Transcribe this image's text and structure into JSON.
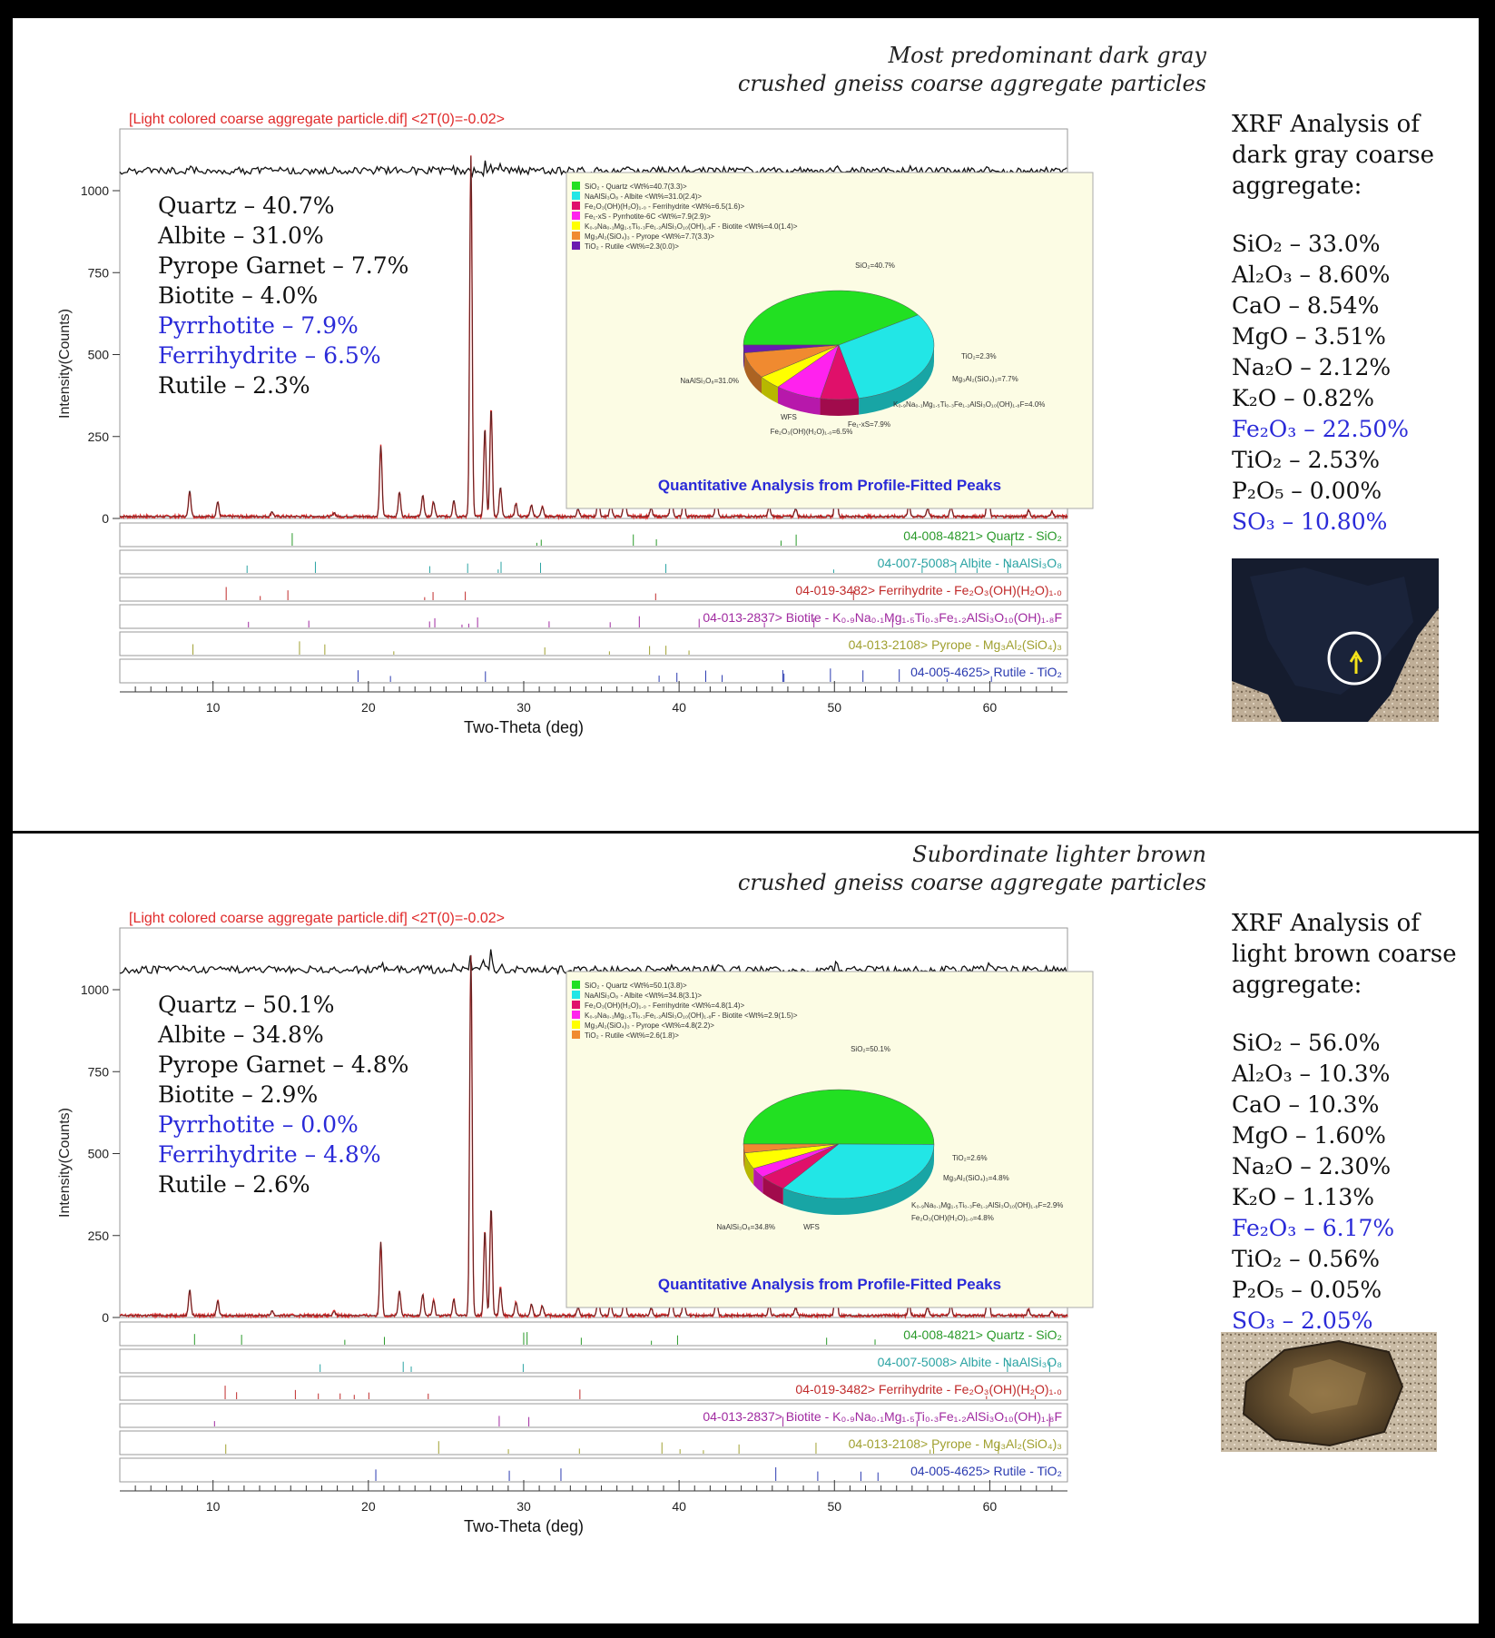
{
  "panels": [
    {
      "subtitle_line1": "Most predominant dark gray",
      "subtitle_line2": "crushed gneiss coarse aggregate particles",
      "chart_header": "[Light colored coarse aggregate particle.dif] <2T(0)=-0.02>",
      "minerals": [
        {
          "text": "Quartz – 40.7%",
          "highlight": false
        },
        {
          "text": "Albite – 31.0%",
          "highlight": false
        },
        {
          "text": "Pyrope Garnet – 7.7%",
          "highlight": false
        },
        {
          "text": "Biotite – 4.0%",
          "highlight": false
        },
        {
          "text": "Pyrrhotite – 7.9%",
          "highlight": true
        },
        {
          "text": "Ferrihydrite – 6.5%",
          "highlight": true
        },
        {
          "text": "Rutile – 2.3%",
          "highlight": false
        }
      ],
      "inset": {
        "title": "Quantitative Analysis from Profile-Fitted Peaks",
        "legend": [
          {
            "label": "SiO₂ - Quartz <Wt%=40.7(3.3)>",
            "color": "#22e022"
          },
          {
            "label": "NaAlSi₃O₈ - Albite <Wt%=31.0(2.4)>",
            "color": "#22e6e6"
          },
          {
            "label": "Fe₂O₃(OH)(H₂O)₁.₀ - Ferrihydrite <Wt%=6.5(1.6)>",
            "color": "#e0106a"
          },
          {
            "label": "Fe₁-xS - Pyrrhotite-6C <Wt%=7.9(2.9)>",
            "color": "#ff22ee"
          },
          {
            "label": "K₀.₉Na₀.₁Mg₁.₅Ti₀.₃Fe₁.₂AlSi₃O₁₀(OH)₁.₈F - Biotite <Wt%=4.0(1.4)>",
            "color": "#ffff00"
          },
          {
            "label": "Mg₃Al₂(SiO₄)₃ - Pyrope <Wt%=7.7(3.3)>",
            "color": "#f08a30"
          },
          {
            "label": "TiO₂ - Rutile <Wt%=2.3(0.0)>",
            "color": "#6a1ab0"
          }
        ],
        "slice_labels": [
          "SiO₂=40.7%",
          "TiO₂=2.3%",
          "Mg₃Al₂(SiO₄)₃=7.7%",
          "K₀.₉Na₀.₁Mg₁.₅Ti₀.₃Fe₁.₂AlSi₃O₁₀(OH)₁.₈F=4.0%",
          "Fe₁-xS=7.9%",
          "Fe₂O₃(OH)(H₂O)₁.₀=6.5%",
          "WFS",
          "NaAlSi₃O₈=31.0%"
        ]
      },
      "phases": [
        {
          "label": "04-008-4821> Quartz - SiO₂",
          "color": "#2a9a2a"
        },
        {
          "label": "04-007-5008> Albite - NaAlSi₃O₈",
          "color": "#2aa3a3"
        },
        {
          "label": "04-019-3482> Ferrihydrite - Fe₂O₃(OH)(H₂O)₁.₀",
          "color": "#c02a2a"
        },
        {
          "label": "04-013-2837> Biotite - K₀.₉Na₀.₁Mg₁.₅Ti₀.₃Fe₁.₂AlSi₃O₁₀(OH)₁.₈F",
          "color": "#a02aa0"
        },
        {
          "label": "04-013-2108> Pyrope - Mg₃Al₂(SiO₄)₃",
          "color": "#a0a030"
        },
        {
          "label": "04-005-4625> Rutile - TiO₂",
          "color": "#2a3ab0"
        }
      ],
      "xrf_title": "XRF Analysis of dark gray coarse aggregate:",
      "xrf": [
        {
          "text": "SiO₂ – 33.0%",
          "highlight": false
        },
        {
          "text": "Al₂O₃ – 8.60%",
          "highlight": false
        },
        {
          "text": "CaO – 8.54%",
          "highlight": false
        },
        {
          "text": "MgO – 3.51%",
          "highlight": false
        },
        {
          "text": "Na₂O – 2.12%",
          "highlight": false
        },
        {
          "text": "K₂O – 0.82%",
          "highlight": false
        },
        {
          "text": "Fe₂O₃ – 22.50%",
          "highlight": true
        },
        {
          "text": "TiO₂ – 2.53%",
          "highlight": false
        },
        {
          "text": "P₂O₅ – 0.00%",
          "highlight": false
        },
        {
          "text": "SO₃ – 10.80%",
          "highlight": true
        }
      ]
    },
    {
      "subtitle_line1": "Subordinate lighter brown",
      "subtitle_line2": "crushed gneiss coarse aggregate particles",
      "chart_header": "[Light colored coarse aggregate particle.dif] <2T(0)=-0.02>",
      "minerals": [
        {
          "text": "Quartz – 50.1%",
          "highlight": false
        },
        {
          "text": "Albite – 34.8%",
          "highlight": false
        },
        {
          "text": "Pyrope Garnet – 4.8%",
          "highlight": false
        },
        {
          "text": "Biotite – 2.9%",
          "highlight": false
        },
        {
          "text": "Pyrrhotite – 0.0%",
          "highlight": true
        },
        {
          "text": "Ferrihydrite – 4.8%",
          "highlight": true
        },
        {
          "text": "Rutile – 2.6%",
          "highlight": false
        }
      ],
      "inset": {
        "title": "Quantitative Analysis from Profile-Fitted Peaks",
        "legend": [
          {
            "label": "SiO₂ - Quartz <Wt%=50.1(3.8)>",
            "color": "#22e022"
          },
          {
            "label": "NaAlSi₃O₈ - Albite <Wt%=34.8(3.1)>",
            "color": "#22e6e6"
          },
          {
            "label": "Fe₂O₃(OH)(H₂O)₁.₀ - Ferrihydrite <Wt%=4.8(1.4)>",
            "color": "#e0106a"
          },
          {
            "label": "K₀.₉Na₀.₁Mg₁.₅Ti₀.₃Fe₁.₂AlSi₃O₁₀(OH)₁.₈F - Biotite <Wt%=2.9(1.5)>",
            "color": "#ff22ee"
          },
          {
            "label": "Mg₃Al₂(SiO₄)₃ - Pyrope <Wt%=4.8(2.2)>",
            "color": "#ffff00"
          },
          {
            "label": "TiO₂ - Rutile <Wt%=2.6(1.8)>",
            "color": "#f08a30"
          }
        ],
        "slice_labels": [
          "SiO₂=50.1%",
          "TiO₂=2.6%",
          "Mg₃Al₂(SiO₄)₃=4.8%",
          "K₀.₉Na₀.₁Mg₁.₅Ti₀.₃Fe₁.₂AlSi₃O₁₀(OH)₁.₈F=2.9%",
          "Fe₂O₃(OH)(H₂O)₁.₀=4.8%",
          "WFS",
          "NaAlSi₃O₈=34.8%"
        ]
      },
      "phases": [
        {
          "label": "04-008-4821> Quartz - SiO₂",
          "color": "#2a9a2a"
        },
        {
          "label": "04-007-5008> Albite - NaAlSi₃O₈",
          "color": "#2aa3a3"
        },
        {
          "label": "04-019-3482> Ferrihydrite - Fe₂O₃(OH)(H₂O)₁.₀",
          "color": "#c02a2a"
        },
        {
          "label": "04-013-2837> Biotite - K₀.₉Na₀.₁Mg₁.₅Ti₀.₃Fe₁.₂AlSi₃O₁₀(OH)₁.₈F",
          "color": "#a02aa0"
        },
        {
          "label": "04-013-2108> Pyrope - Mg₃Al₂(SiO₄)₃",
          "color": "#a0a030"
        },
        {
          "label": "04-005-4625> Rutile - TiO₂",
          "color": "#2a3ab0"
        }
      ],
      "xrf_title": "XRF Analysis of light brown coarse aggregate:",
      "xrf": [
        {
          "text": "SiO₂ – 56.0%",
          "highlight": false
        },
        {
          "text": "Al₂O₃ – 10.3%",
          "highlight": false
        },
        {
          "text": "CaO – 10.3%",
          "highlight": false
        },
        {
          "text": "MgO – 1.60%",
          "highlight": false
        },
        {
          "text": "Na₂O – 2.30%",
          "highlight": false
        },
        {
          "text": "K₂O – 1.13%",
          "highlight": false
        },
        {
          "text": "Fe₂O₃ – 6.17%",
          "highlight": true
        },
        {
          "text": "TiO₂ – 0.56%",
          "highlight": false
        },
        {
          "text": "P₂O₅ – 0.05%",
          "highlight": false
        },
        {
          "text": "SO₃ – 2.05%",
          "highlight": true
        }
      ]
    }
  ],
  "chart_data": [
    {
      "type": "line",
      "xlabel": "Two-Theta (deg)",
      "ylabel": "Intensity(Counts)",
      "xlim": [
        4,
        65
      ],
      "ylim": [
        0,
        1000
      ],
      "xticks": [
        10,
        20,
        30,
        40,
        50,
        60
      ],
      "yticks": [
        0,
        250,
        500,
        750,
        1000
      ],
      "peaks": [
        [
          8.5,
          80
        ],
        [
          10.3,
          45
        ],
        [
          13.8,
          15
        ],
        [
          17.8,
          12
        ],
        [
          20.8,
          215
        ],
        [
          22.0,
          75
        ],
        [
          23.5,
          65
        ],
        [
          24.2,
          45
        ],
        [
          25.5,
          50
        ],
        [
          26.6,
          1100
        ],
        [
          27.5,
          270
        ],
        [
          27.9,
          330
        ],
        [
          28.5,
          90
        ],
        [
          29.5,
          40
        ],
        [
          30.5,
          35
        ],
        [
          31.2,
          30
        ],
        [
          33.5,
          25
        ],
        [
          34.8,
          60
        ],
        [
          35.6,
          40
        ],
        [
          36.5,
          75
        ],
        [
          38.2,
          25
        ],
        [
          39.5,
          70
        ],
        [
          40.3,
          55
        ],
        [
          42.4,
          60
        ],
        [
          45.8,
          30
        ],
        [
          47.5,
          25
        ],
        [
          50.1,
          150
        ],
        [
          54.8,
          35
        ],
        [
          56.0,
          25
        ],
        [
          57.5,
          30
        ],
        [
          59.9,
          120
        ],
        [
          62.5,
          20
        ],
        [
          64.0,
          15
        ]
      ],
      "pie": {
        "categories": [
          "SiO₂",
          "NaAlSi₃O₈",
          "Fe₂O₃(OH)(H₂O)₁.₀",
          "Fe₁-xS",
          "K₀.₉Na₀.₁Mg₁.₅Ti₀.₃Fe₁.₂AlSi₃O₁₀(OH)₁.₈F",
          "Mg₃Al₂(SiO₄)₃",
          "TiO₂"
        ],
        "values": [
          40.7,
          31.0,
          6.5,
          7.9,
          4.0,
          7.7,
          2.3
        ]
      }
    },
    {
      "type": "line",
      "xlabel": "Two-Theta (deg)",
      "ylabel": "Intensity(Counts)",
      "xlim": [
        4,
        65
      ],
      "ylim": [
        0,
        1000
      ],
      "xticks": [
        10,
        20,
        30,
        40,
        50,
        60
      ],
      "yticks": [
        0,
        250,
        500,
        750,
        1000
      ],
      "peaks": [
        [
          8.5,
          80
        ],
        [
          10.3,
          45
        ],
        [
          13.8,
          15
        ],
        [
          17.8,
          12
        ],
        [
          20.8,
          225
        ],
        [
          22.0,
          75
        ],
        [
          23.5,
          65
        ],
        [
          24.2,
          45
        ],
        [
          25.5,
          50
        ],
        [
          26.6,
          1100
        ],
        [
          27.5,
          260
        ],
        [
          27.9,
          330
        ],
        [
          28.5,
          85
        ],
        [
          29.5,
          40
        ],
        [
          30.5,
          35
        ],
        [
          31.2,
          30
        ],
        [
          33.5,
          25
        ],
        [
          34.8,
          55
        ],
        [
          35.6,
          40
        ],
        [
          36.5,
          80
        ],
        [
          38.2,
          25
        ],
        [
          39.5,
          70
        ],
        [
          40.3,
          55
        ],
        [
          42.4,
          55
        ],
        [
          45.8,
          30
        ],
        [
          47.5,
          25
        ],
        [
          50.1,
          140
        ],
        [
          54.8,
          35
        ],
        [
          56.0,
          25
        ],
        [
          57.5,
          30
        ],
        [
          59.9,
          110
        ],
        [
          62.5,
          20
        ],
        [
          64.0,
          15
        ]
      ],
      "pie": {
        "categories": [
          "SiO₂",
          "NaAlSi₃O₈",
          "Fe₂O₃(OH)(H₂O)₁.₀",
          "K₀.₉Na₀.₁Mg₁.₅Ti₀.₃Fe₁.₂AlSi₃O₁₀(OH)₁.₈F",
          "Mg₃Al₂(SiO₄)₃",
          "TiO₂"
        ],
        "values": [
          50.1,
          34.8,
          4.8,
          2.9,
          4.8,
          2.6
        ]
      }
    }
  ]
}
